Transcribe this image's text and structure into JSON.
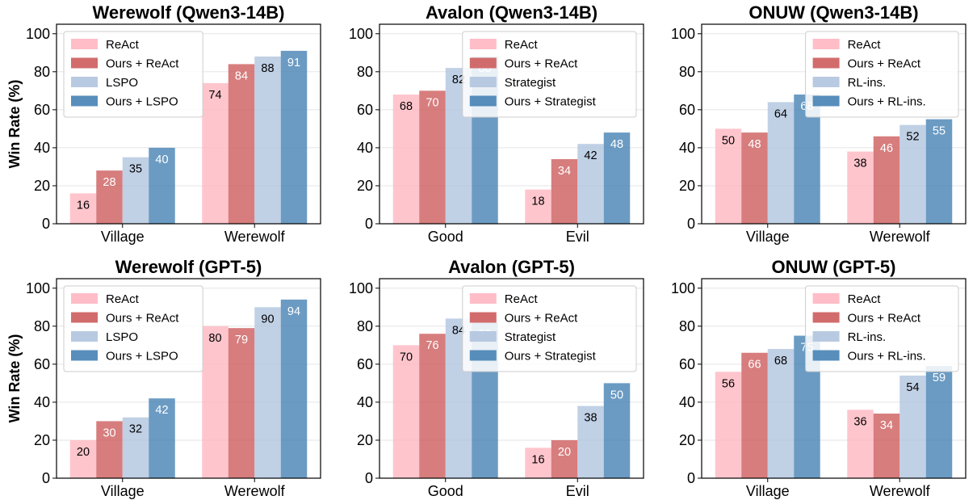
{
  "colors": {
    "react": "#ffb6c1",
    "ours_react": "#cd5c5c",
    "baseline": "#b0c4de",
    "ours_baseline": "#4682b4",
    "grid": "#e5e5e5"
  },
  "y_axis_label": "Win Rate (%)",
  "chart_data": [
    {
      "type": "bar",
      "title": "Werewolf (Qwen3-14B)",
      "ylabel": "Win Rate (%)",
      "ylim": [
        0,
        105
      ],
      "yticks": [
        "0",
        "20",
        "40",
        "60",
        "80",
        "100"
      ],
      "grid": true,
      "legend_position": "top-left",
      "categories": [
        "Village",
        "Werewolf"
      ],
      "series": [
        {
          "name": "ReAct",
          "values": [
            16,
            74
          ]
        },
        {
          "name": "Ours + ReAct",
          "values": [
            28,
            84
          ]
        },
        {
          "name": "LSPO",
          "values": [
            35,
            88
          ]
        },
        {
          "name": "Ours + LSPO",
          "values": [
            40,
            91
          ]
        }
      ]
    },
    {
      "type": "bar",
      "title": "Avalon (Qwen3-14B)",
      "ylim": [
        0,
        105
      ],
      "yticks": [
        "0",
        "20",
        "40",
        "60",
        "80",
        "100"
      ],
      "grid": true,
      "legend_position": "top-right",
      "categories": [
        "Good",
        "Evil"
      ],
      "series": [
        {
          "name": "ReAct",
          "values": [
            68,
            18
          ]
        },
        {
          "name": "Ours + ReAct",
          "values": [
            70,
            34
          ]
        },
        {
          "name": "Strategist",
          "values": [
            82,
            42
          ]
        },
        {
          "name": "Ours + Strategist",
          "values": [
            88,
            48
          ]
        }
      ]
    },
    {
      "type": "bar",
      "title": "ONUW (Qwen3-14B)",
      "ylim": [
        0,
        105
      ],
      "yticks": [
        "0",
        "20",
        "40",
        "60",
        "80",
        "100"
      ],
      "grid": true,
      "legend_position": "top-right",
      "categories": [
        "Village",
        "Werewolf"
      ],
      "series": [
        {
          "name": "ReAct",
          "values": [
            50,
            38
          ]
        },
        {
          "name": "Ours + ReAct",
          "values": [
            48,
            46
          ]
        },
        {
          "name": "RL-ins.",
          "values": [
            64,
            52
          ]
        },
        {
          "name": "Ours + RL-ins.",
          "values": [
            68,
            55
          ]
        }
      ]
    },
    {
      "type": "bar",
      "title": "Werewolf (GPT-5)",
      "ylabel": "Win Rate (%)",
      "ylim": [
        0,
        105
      ],
      "yticks": [
        "0",
        "20",
        "40",
        "60",
        "80",
        "100"
      ],
      "grid": true,
      "legend_position": "top-left",
      "categories": [
        "Village",
        "Werewolf"
      ],
      "series": [
        {
          "name": "ReAct",
          "values": [
            20,
            80
          ]
        },
        {
          "name": "Ours + ReAct",
          "values": [
            30,
            79
          ]
        },
        {
          "name": "LSPO",
          "values": [
            32,
            90
          ]
        },
        {
          "name": "Ours + LSPO",
          "values": [
            42,
            94
          ]
        }
      ]
    },
    {
      "type": "bar",
      "title": "Avalon (GPT-5)",
      "ylim": [
        0,
        105
      ],
      "yticks": [
        "0",
        "20",
        "40",
        "60",
        "80",
        "100"
      ],
      "grid": true,
      "legend_position": "top-right",
      "categories": [
        "Good",
        "Evil"
      ],
      "series": [
        {
          "name": "ReAct",
          "values": [
            70,
            16
          ]
        },
        {
          "name": "Ours + ReAct",
          "values": [
            76,
            20
          ]
        },
        {
          "name": "Strategist",
          "values": [
            84,
            38
          ]
        },
        {
          "name": "Ours + Strategist",
          "values": [
            82,
            50
          ]
        }
      ]
    },
    {
      "type": "bar",
      "title": "ONUW (GPT-5)",
      "ylim": [
        0,
        105
      ],
      "yticks": [
        "0",
        "20",
        "40",
        "60",
        "80",
        "100"
      ],
      "grid": true,
      "legend_position": "top-right",
      "categories": [
        "Village",
        "Werewolf"
      ],
      "series": [
        {
          "name": "ReAct",
          "values": [
            56,
            36
          ]
        },
        {
          "name": "Ours + ReAct",
          "values": [
            66,
            34
          ]
        },
        {
          "name": "RL-ins.",
          "values": [
            68,
            54
          ]
        },
        {
          "name": "Ours + RL-ins.",
          "values": [
            75,
            59
          ]
        }
      ]
    }
  ]
}
